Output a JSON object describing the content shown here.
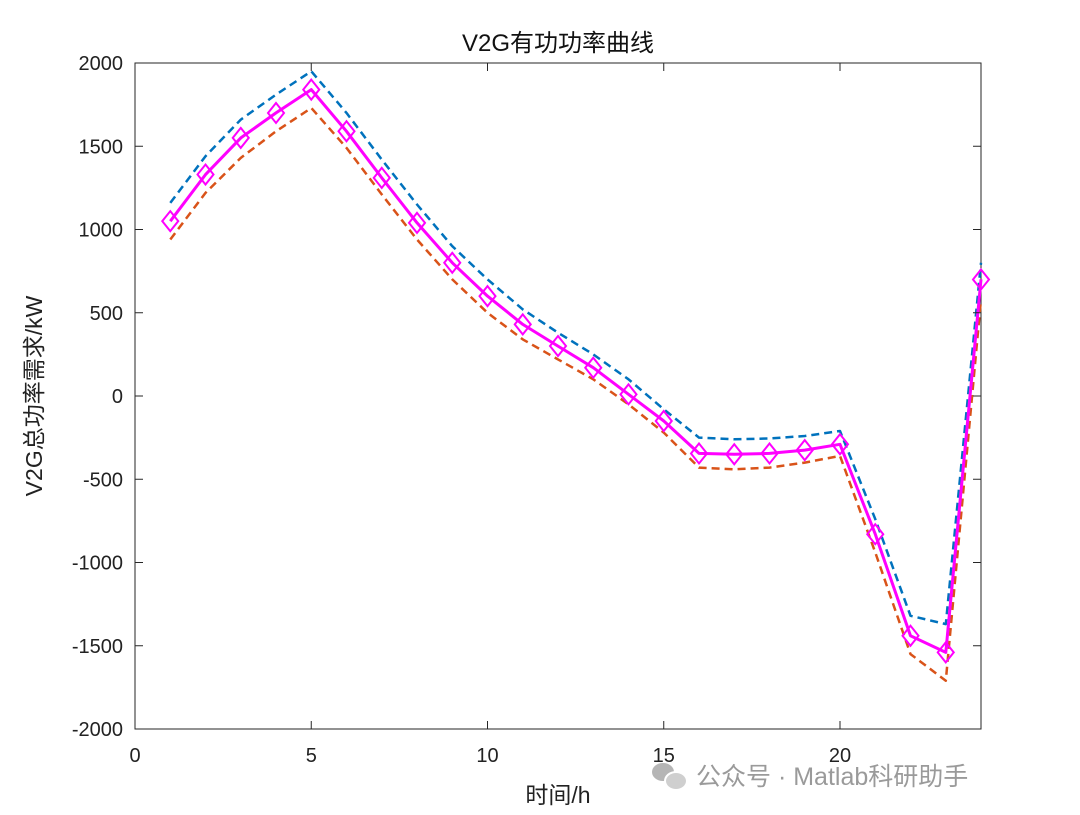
{
  "chart_data": {
    "type": "line",
    "title": "V2G有功功率曲线",
    "xlabel": "时间/h",
    "ylabel": "V2G总功率需求/kW",
    "xlim": [
      0,
      24
    ],
    "ylim": [
      -2000,
      2000
    ],
    "xticks": [
      0,
      5,
      10,
      15,
      20
    ],
    "yticks": [
      -2000,
      -1500,
      -1000,
      -500,
      0,
      500,
      1000,
      1500,
      2000
    ],
    "grid": false,
    "legend": "none",
    "x": [
      1,
      2,
      3,
      4,
      5,
      6,
      7,
      8,
      9,
      10,
      11,
      12,
      13,
      14,
      15,
      16,
      17,
      18,
      19,
      20,
      21,
      22,
      23,
      24
    ],
    "series": [
      {
        "color": "#0072BD",
        "line_style": "dashed",
        "marker": "none",
        "values": [
          1160,
          1440,
          1660,
          1810,
          1950,
          1700,
          1420,
          1150,
          900,
          700,
          520,
          380,
          250,
          100,
          -80,
          -250,
          -260,
          -255,
          -240,
          -210,
          -740,
          -1320,
          -1370,
          800
        ]
      },
      {
        "color": "#D95319",
        "line_style": "dashed",
        "marker": "none",
        "values": [
          940,
          1220,
          1430,
          1590,
          1730,
          1490,
          1210,
          940,
          700,
          500,
          340,
          220,
          100,
          -50,
          -220,
          -430,
          -440,
          -430,
          -400,
          -360,
          -940,
          -1550,
          -1710,
          580
        ]
      },
      {
        "color": "#FF00FF",
        "line_style": "solid",
        "marker": "diamond",
        "values": [
          1050,
          1330,
          1550,
          1700,
          1840,
          1590,
          1310,
          1040,
          800,
          600,
          430,
          300,
          170,
          10,
          -150,
          -345,
          -350,
          -345,
          -325,
          -290,
          -830,
          -1440,
          -1540,
          700
        ]
      }
    ]
  },
  "watermark": {
    "text": "公众号 · Matlab科研助手",
    "icon": "wechat-icon"
  }
}
